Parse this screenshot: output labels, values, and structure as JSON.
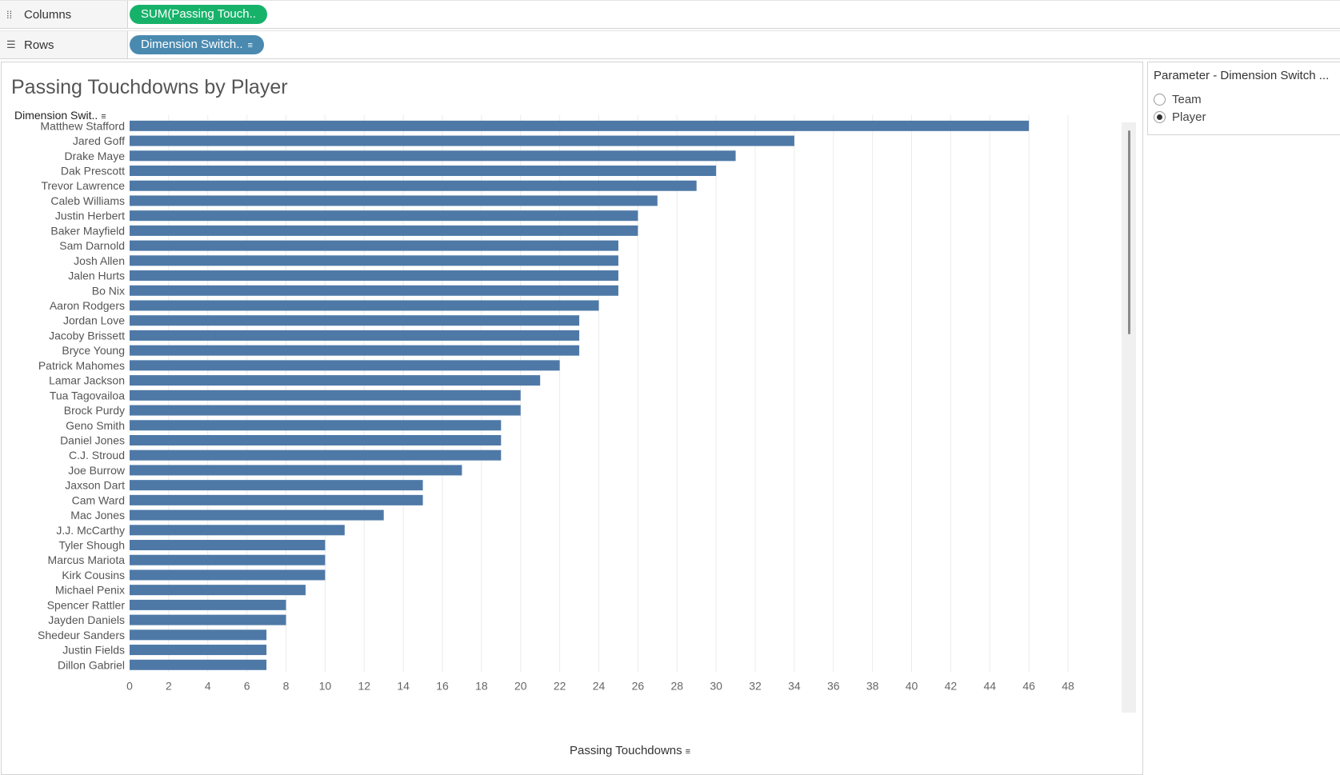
{
  "shelves": {
    "columns": {
      "label": "Columns",
      "pill": "SUM(Passing Touch..",
      "icon": "columns-icon"
    },
    "rows": {
      "label": "Rows",
      "pill": "Dimension Switch..",
      "icon": "rows-icon"
    }
  },
  "viz": {
    "title": "Passing Touchdowns by Player",
    "dimension_header": "Dimension Swit..",
    "axis_title": "Passing Touchdowns"
  },
  "parameter": {
    "title": "Parameter - Dimension Switch ...",
    "options": [
      {
        "label": "Team",
        "selected": false
      },
      {
        "label": "Player",
        "selected": true
      }
    ]
  },
  "colors": {
    "bar": "#4e79a7",
    "columns_pill": "#17b26a",
    "rows_pill": "#4a8ab0"
  },
  "chart_data": {
    "type": "bar",
    "orientation": "horizontal",
    "title": "Passing Touchdowns by Player",
    "xlabel": "Passing Touchdowns",
    "ylabel": "Dimension Swit..",
    "xlim": [
      0,
      48
    ],
    "ticks": [
      0,
      2,
      4,
      6,
      8,
      10,
      12,
      14,
      16,
      18,
      20,
      22,
      24,
      26,
      28,
      30,
      32,
      34,
      36,
      38,
      40,
      42,
      44,
      46,
      48
    ],
    "grid": true,
    "categories": [
      "Matthew Stafford",
      "Jared Goff",
      "Drake Maye",
      "Dak Prescott",
      "Trevor Lawrence",
      "Caleb Williams",
      "Justin Herbert",
      "Baker Mayfield",
      "Sam Darnold",
      "Josh Allen",
      "Jalen Hurts",
      "Bo Nix",
      "Aaron Rodgers",
      "Jordan Love",
      "Jacoby Brissett",
      "Bryce Young",
      "Patrick Mahomes",
      "Lamar Jackson",
      "Tua Tagovailoa",
      "Brock Purdy",
      "Geno Smith",
      "Daniel Jones",
      "C.J. Stroud",
      "Joe Burrow",
      "Jaxson Dart",
      "Cam Ward",
      "Mac Jones",
      "J.J. McCarthy",
      "Tyler Shough",
      "Marcus Mariota",
      "Kirk Cousins",
      "Michael Penix",
      "Spencer Rattler",
      "Jayden Daniels",
      "Shedeur Sanders",
      "Justin Fields",
      "Dillon Gabriel"
    ],
    "values": [
      46,
      34,
      31,
      30,
      29,
      27,
      26,
      26,
      25,
      25,
      25,
      25,
      24,
      23,
      23,
      23,
      22,
      21,
      20,
      20,
      19,
      19,
      19,
      17,
      15,
      15,
      13,
      11,
      10,
      10,
      10,
      9,
      8,
      8,
      7,
      7,
      7
    ]
  }
}
